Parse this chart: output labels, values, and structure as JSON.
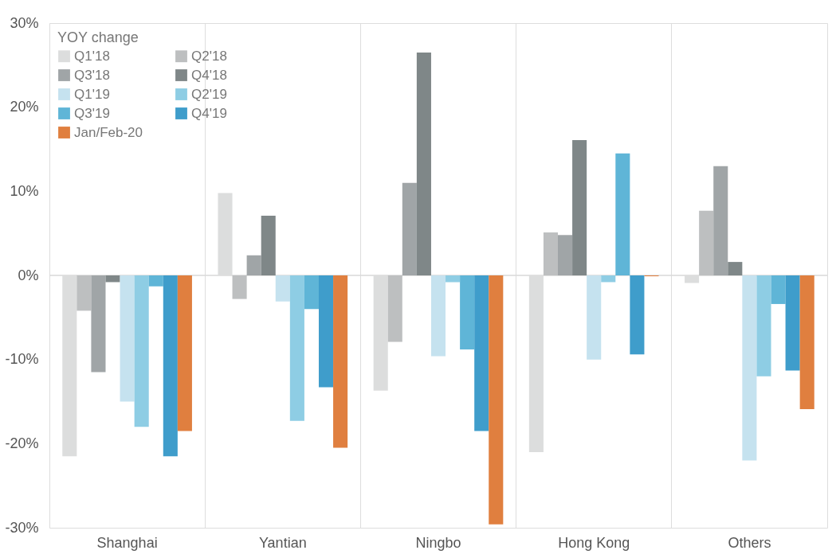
{
  "chart_data": {
    "type": "bar",
    "legend_title": "YOY change",
    "categories": [
      "Shanghai",
      "Yantian",
      "Ningbo",
      "Hong Kong",
      "Others"
    ],
    "series": [
      {
        "name": "Q1'18",
        "color": "#dcdddd",
        "values": [
          -21.5,
          9.8,
          -13.7,
          -21,
          -0.9
        ]
      },
      {
        "name": "Q2'18",
        "color": "#bdbfc0",
        "values": [
          -4.2,
          -2.8,
          -7.9,
          5.1,
          7.7
        ]
      },
      {
        "name": "Q3'18",
        "color": "#a0a5a7",
        "values": [
          -11.5,
          2.4,
          11,
          4.8,
          13
        ]
      },
      {
        "name": "Q4'18",
        "color": "#7f8788",
        "values": [
          -0.8,
          7.1,
          26.5,
          16.1,
          1.6
        ]
      },
      {
        "name": "Q1'19",
        "color": "#c5e2ef",
        "values": [
          -15,
          -3.1,
          -9.6,
          -10,
          -22
        ]
      },
      {
        "name": "Q2'19",
        "color": "#8ecde4",
        "values": [
          -18,
          -17.3,
          -0.8,
          -0.8,
          -12
        ]
      },
      {
        "name": "Q3'19",
        "color": "#5fb5d7",
        "values": [
          -1.3,
          -4,
          -8.8,
          14.5,
          -3.4
        ]
      },
      {
        "name": "Q4'19",
        "color": "#3f9dcb",
        "values": [
          -21.5,
          -13.3,
          -18.5,
          -9.4,
          -11.3
        ]
      },
      {
        "name": "Jan/Feb-20",
        "color": "#e07f3f",
        "values": [
          -18.5,
          -20.5,
          -29.6,
          -0.1,
          -15.9
        ]
      }
    ],
    "ylim": [
      -30,
      30
    ],
    "yticks": [
      {
        "value": -30,
        "label": "-30%"
      },
      {
        "value": -20,
        "label": "-20%"
      },
      {
        "value": -10,
        "label": "-10%"
      },
      {
        "value": 0,
        "label": "0%"
      },
      {
        "value": 10,
        "label": "10%"
      },
      {
        "value": 20,
        "label": "20%"
      },
      {
        "value": 30,
        "label": "30%"
      }
    ],
    "ref_lines": [
      {
        "axis": "y",
        "value": 0,
        "color": "#d9d9d9"
      }
    ],
    "grid": "x",
    "legend": "top left"
  }
}
